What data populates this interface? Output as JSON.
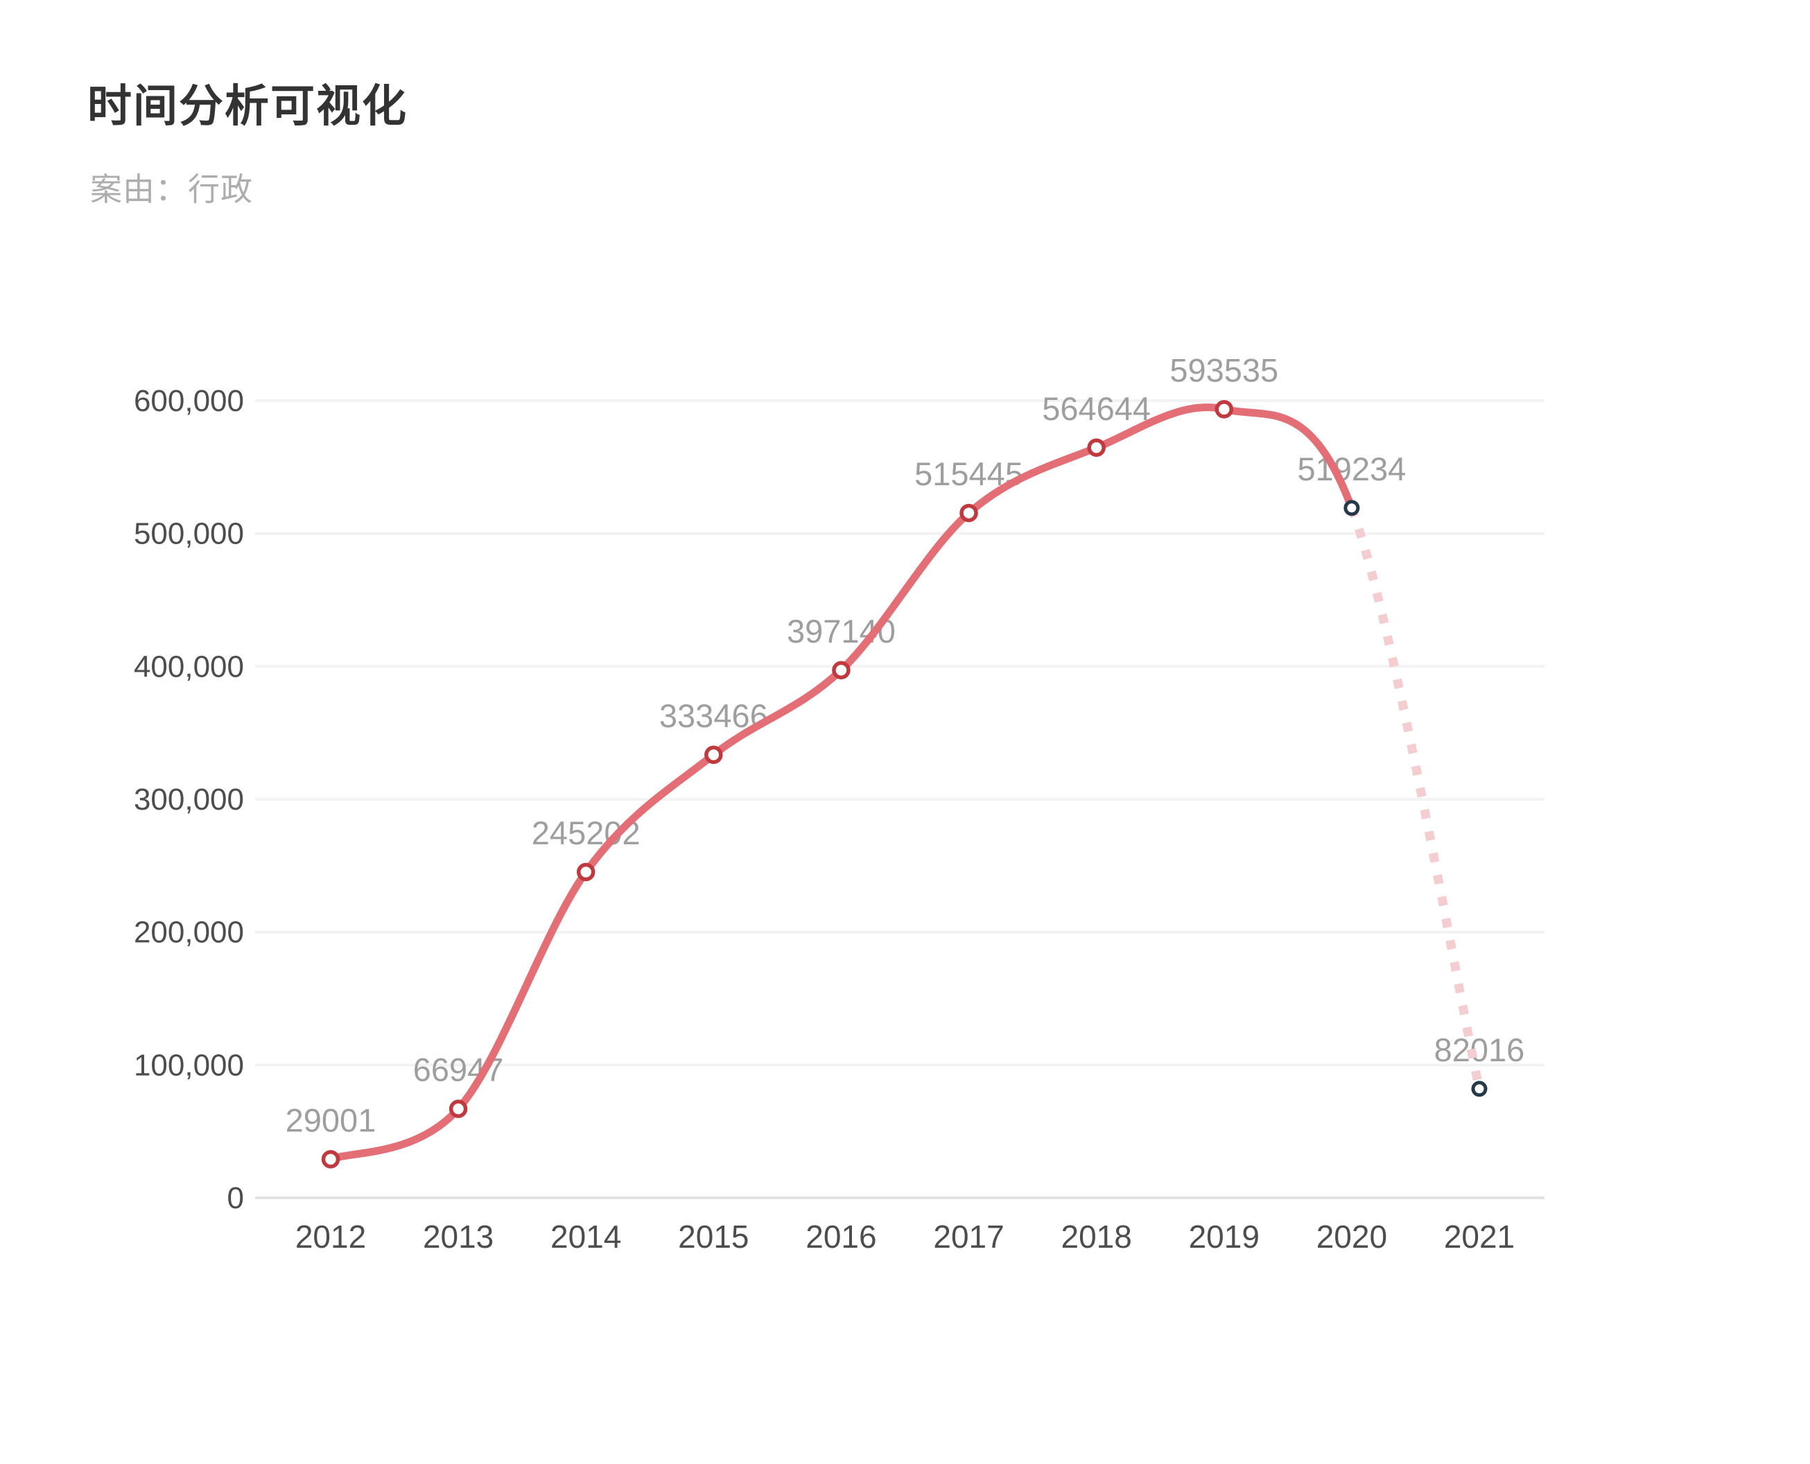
{
  "header": {
    "title": "时间分析可视化",
    "subtitle": "案由：行政"
  },
  "chart_data": {
    "type": "line",
    "title": "时间分析可视化",
    "subtitle": "案由：行政",
    "categories": [
      "2012",
      "2013",
      "2014",
      "2015",
      "2016",
      "2017",
      "2018",
      "2019",
      "2020",
      "2021"
    ],
    "values": [
      29001,
      66947,
      245202,
      333466,
      397140,
      515445,
      564644,
      593535,
      519234,
      82016
    ],
    "data_labels": [
      "29001",
      "66947",
      "245202",
      "333466",
      "397140",
      "515445",
      "564644",
      "593535",
      "519234",
      "82016"
    ],
    "ylim": [
      0,
      600000
    ],
    "y_tick_values": [
      0,
      100000,
      200000,
      300000,
      400000,
      500000,
      600000
    ],
    "y_tick_labels": [
      "0",
      "100,000",
      "200,000",
      "300,000",
      "400,000",
      "500,000",
      "600,000"
    ],
    "grid": true,
    "legend": "none",
    "line_style": "smooth",
    "solid_segment_last_index": 8,
    "dotted_segment": {
      "from": "2020",
      "to": "2021"
    },
    "dark_point_categories": [
      "2020",
      "2021"
    ],
    "colors": {
      "line": "#e46e75",
      "point_fill": "#ffffff",
      "point_ring": "#c0393e",
      "endpoint_ring": "#24394a",
      "forecast_dots": "#f4cdd1",
      "grid_line": "#f2f2f2",
      "axis_line": "#e2e2e2",
      "tick_text": "#4d4d4d",
      "data_label": "#9e9e9e",
      "title": "#333333",
      "subtitle": "#adadad",
      "background": "#ffffff"
    }
  }
}
